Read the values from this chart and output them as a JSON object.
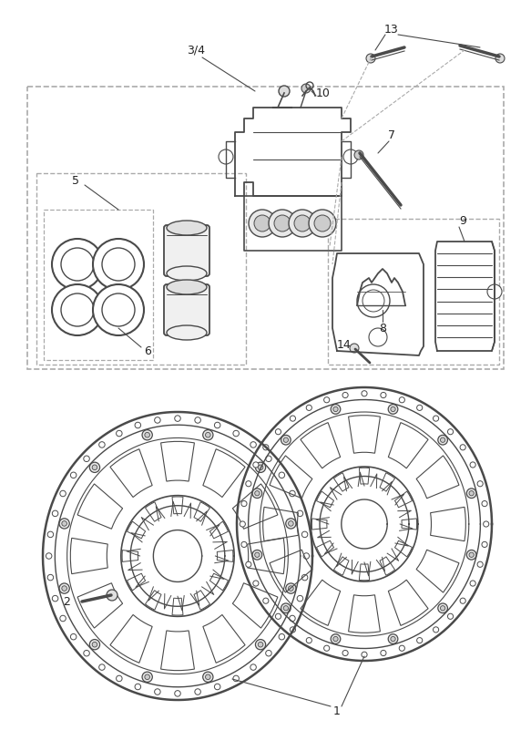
{
  "bg_color": "#ffffff",
  "line_color": "#4a4a4a",
  "dashed_color": "#aaaaaa",
  "label_color": "#222222",
  "fig_width": 5.83,
  "fig_height": 8.24,
  "dpi": 100
}
